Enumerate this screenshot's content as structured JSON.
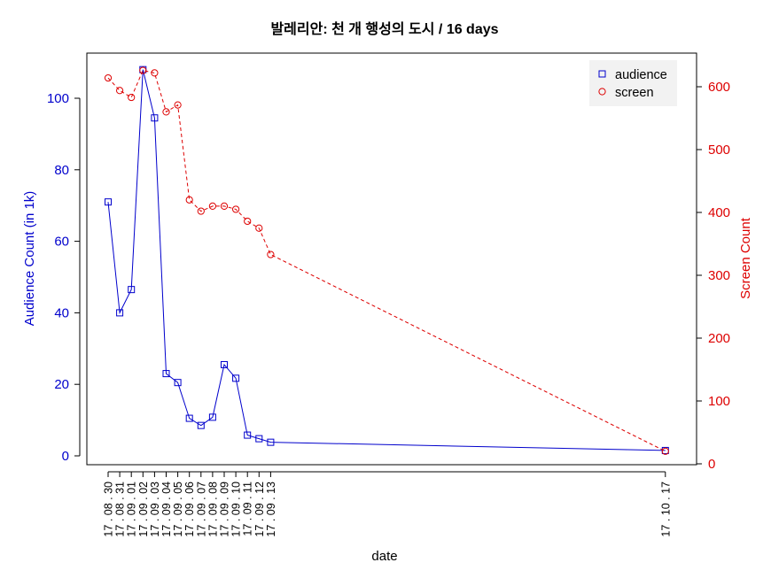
{
  "chart_data": {
    "type": "line",
    "title": "발레리안: 천 개 행성의 도시 / 16 days",
    "xlabel": "date",
    "ylabel_left": "Audience Count (in 1k)",
    "ylabel_right": "Screen Count",
    "categories": [
      "17 . 08 . 30",
      "17 . 08 . 31",
      "17 . 09 . 01",
      "17 . 09 . 02",
      "17 . 09 . 03",
      "17 . 09 . 04",
      "17 . 09 . 05",
      "17 . 09 . 06",
      "17 . 09 . 07",
      "17 . 09 . 08",
      "17 . 09 . 09",
      "17 . 09 . 10",
      "17 . 09 . 11",
      "17 . 09 . 12",
      "17 . 09 . 13",
      "17 . 10 . 17"
    ],
    "day_index": [
      0,
      1,
      2,
      3,
      4,
      5,
      6,
      7,
      8,
      9,
      10,
      11,
      12,
      13,
      14,
      48
    ],
    "left_axis": {
      "ylim": [
        0,
        110
      ],
      "ticks": [
        0,
        20,
        40,
        60,
        80,
        100
      ],
      "color": "#0000cc"
    },
    "right_axis": {
      "ylim": [
        0,
        640
      ],
      "ticks": [
        0,
        100,
        200,
        300,
        400,
        500,
        600
      ],
      "color": "#dd0000"
    },
    "series": [
      {
        "name": "audience",
        "axis": "left",
        "color": "#0000cc",
        "marker": "square",
        "line": "solid",
        "values": [
          71,
          40,
          46.5,
          108,
          94.5,
          23,
          20.5,
          10.5,
          8.5,
          10.8,
          25.5,
          21.7,
          5.8,
          4.8,
          3.8,
          1.5
        ]
      },
      {
        "name": "screen",
        "axis": "right",
        "color": "#dd0000",
        "marker": "circle",
        "line": "dashed",
        "values": [
          614,
          594,
          583,
          626,
          622,
          560,
          571,
          420,
          402,
          410,
          410,
          405,
          386,
          375,
          333,
          20
        ]
      }
    ],
    "legend": {
      "position": "top-right",
      "entries": [
        "audience",
        "screen"
      ]
    }
  }
}
